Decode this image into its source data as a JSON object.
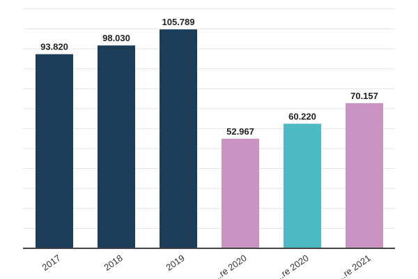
{
  "colors": {
    "grid": "#e3e3e3",
    "axis": "#444444",
    "label": "#222222"
  },
  "chart_data": {
    "type": "bar",
    "title": "",
    "xlabel": "",
    "ylabel": "",
    "grid": true,
    "ylim": [
      0,
      120000
    ],
    "categories": [
      "2017",
      "2018",
      "2019",
      "...re 2020",
      "...re 2020",
      "...re 2021"
    ],
    "values": [
      93820,
      98030,
      105789,
      52967,
      60220,
      70157
    ],
    "value_labels": [
      "93.820",
      "98.030",
      "105.789",
      "52.967",
      "60.220",
      "70.157"
    ],
    "bar_colors": [
      "#1b3d59",
      "#1b3d59",
      "#1b3d59",
      "#c993c2",
      "#4dbac3",
      "#c993c2"
    ]
  }
}
